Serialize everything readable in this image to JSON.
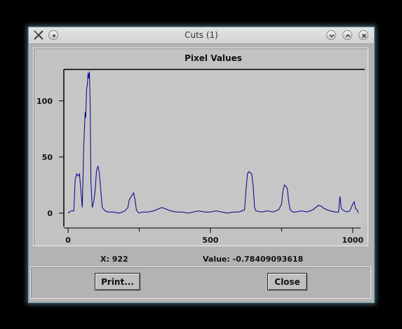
{
  "window": {
    "title": "Cuts (1)"
  },
  "plot": {
    "chart_data": {
      "type": "line",
      "title": "Pixel Values",
      "xlabel": "",
      "ylabel": "",
      "xlim": [
        -10,
        1040
      ],
      "ylim": [
        -12,
        128
      ],
      "xticks": [
        0,
        500,
        1000
      ],
      "xtick_labels": [
        "0",
        "500",
        "1000"
      ],
      "yticks": [
        0,
        50,
        100
      ],
      "ytick_labels": [
        "0",
        "50",
        "100"
      ],
      "grid": false,
      "color": "#00008b",
      "series": [
        {
          "x": [
            0,
            10,
            20,
            25,
            30,
            35,
            40,
            45,
            50,
            55,
            60,
            62,
            65,
            68,
            70,
            72,
            75,
            78,
            80,
            85,
            90,
            95,
            100,
            105,
            110,
            115,
            120,
            130,
            140,
            160,
            180,
            200,
            210,
            215,
            220,
            225,
            230,
            235,
            240,
            245,
            250,
            260,
            280,
            300,
            320,
            330,
            340,
            350,
            360,
            380,
            400,
            420,
            440,
            460,
            480,
            500,
            520,
            540,
            560,
            580,
            600,
            610,
            620,
            625,
            630,
            635,
            640,
            645,
            650,
            655,
            660,
            680,
            700,
            720,
            740,
            750,
            755,
            760,
            765,
            770,
            775,
            780,
            790,
            800,
            820,
            840,
            850,
            860,
            870,
            880,
            890,
            900,
            920,
            940,
            950,
            955,
            960,
            970,
            980,
            990,
            1000,
            1005,
            1010,
            1015,
            1020
          ],
          "y": [
            0,
            2,
            2,
            30,
            35,
            33,
            35,
            20,
            5,
            60,
            90,
            85,
            110,
            115,
            125,
            120,
            126,
            90,
            30,
            5,
            10,
            20,
            38,
            42,
            35,
            20,
            5,
            2,
            1,
            1,
            0,
            2,
            5,
            12,
            14,
            16,
            18,
            12,
            3,
            1,
            0,
            1,
            1,
            2,
            4,
            5,
            4,
            3,
            2,
            1,
            1,
            0,
            1,
            2,
            1,
            1,
            2,
            1,
            0,
            1,
            1,
            2,
            3,
            20,
            35,
            37,
            36,
            35,
            25,
            5,
            2,
            1,
            2,
            1,
            3,
            8,
            20,
            25,
            24,
            22,
            10,
            3,
            1,
            1,
            2,
            1,
            2,
            3,
            5,
            7,
            6,
            4,
            2,
            1,
            1,
            15,
            4,
            2,
            1,
            2,
            8,
            10,
            4,
            3,
            0
          ]
        }
      ]
    }
  },
  "status": {
    "x_text": "X: 922",
    "value_text": "Value: -0.784090936183933"
  },
  "buttons": {
    "print_label": "Print...",
    "close_label": "Close"
  },
  "icons": [
    "app-icon",
    "menu-icon",
    "minimize-icon",
    "maximize-icon",
    "close-icon"
  ]
}
